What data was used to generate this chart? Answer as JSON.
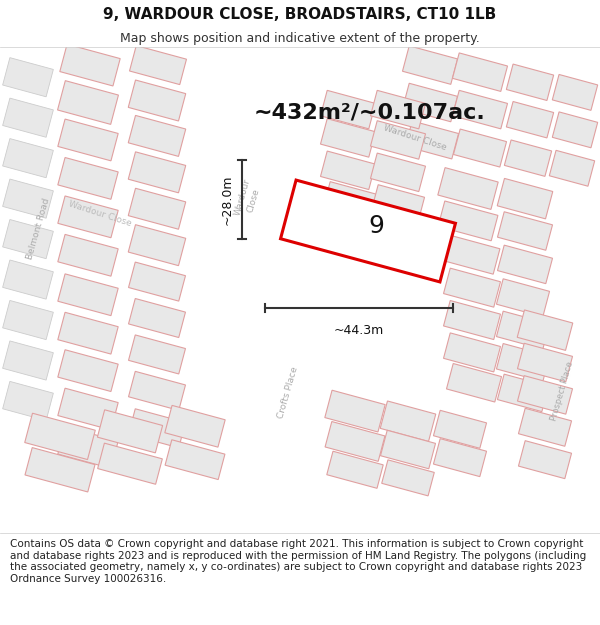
{
  "title": "9, WARDOUR CLOSE, BROADSTAIRS, CT10 1LB",
  "subtitle": "Map shows position and indicative extent of the property.",
  "footer": "Contains OS data © Crown copyright and database right 2021. This information is subject to Crown copyright and database rights 2023 and is reproduced with the permission of HM Land Registry. The polygons (including the associated geometry, namely x, y co-ordinates) are subject to Crown copyright and database rights 2023 Ordnance Survey 100026316.",
  "area_label": "~432m²/~0.107ac.",
  "plot_number": "9",
  "width_label": "~44.3m",
  "height_label": "~28.0m",
  "map_bg": "#f2f0ef",
  "header_bg": "#ffffff",
  "footer_bg": "#ffffff",
  "building_fill": "#e8e8e8",
  "building_ec": "#e0a0a0",
  "building_ec2": "#cccccc",
  "red_outline": "#dd0000",
  "dark_line": "#333333",
  "road_label_color": "#aaaaaa",
  "title_fontsize": 11,
  "subtitle_fontsize": 9,
  "footer_fontsize": 7.5,
  "area_fontsize": 16,
  "dim_fontsize": 9,
  "num_fontsize": 18
}
